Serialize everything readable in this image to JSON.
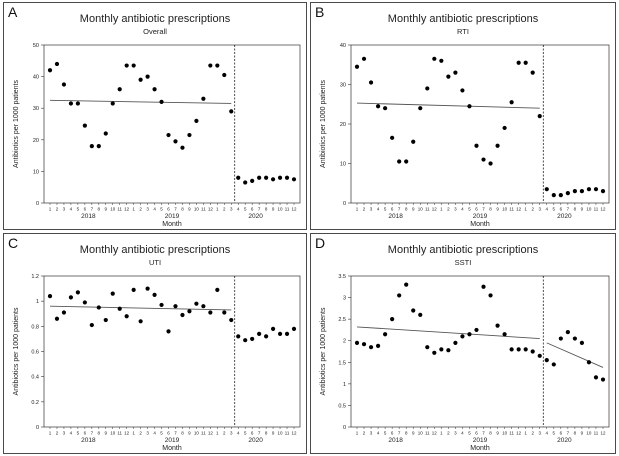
{
  "figure": {
    "colors": {
      "background": "#ffffff",
      "marker": "#000000",
      "trend_line": "#555555",
      "frame": "#333333",
      "text": "#222222"
    },
    "panels": [
      {
        "letter": "A",
        "title": "Monthly antibiotic prescriptions",
        "subtitle": "Overall"
      },
      {
        "letter": "B",
        "title": "Monthly antibiotic prescriptions",
        "subtitle": "RTI"
      },
      {
        "letter": "C",
        "title": "Monthly antibiotic prescriptions",
        "subtitle": "UTI"
      },
      {
        "letter": "D",
        "title": "Monthly antibiotic prescriptions",
        "subtitle": "SSTI"
      }
    ]
  },
  "chart_data": [
    {
      "type": "scatter",
      "title": "Monthly antibiotic prescriptions",
      "subtitle": "Overall",
      "xlabel": "Month",
      "ylabel": "Antibiotics per 1000 patients",
      "x_tick_labels": [
        "1",
        "2",
        "3",
        "4",
        "5",
        "6",
        "7",
        "8",
        "9",
        "10",
        "11",
        "12",
        "1",
        "2",
        "3",
        "4",
        "5",
        "6",
        "7",
        "8",
        "9",
        "10",
        "11",
        "12",
        "1",
        "2",
        "3",
        "4",
        "5",
        "6",
        "7",
        "8",
        "9",
        "10",
        "11",
        "12"
      ],
      "year_labels": [
        "2018",
        "2019",
        "2020"
      ],
      "ylim": [
        0,
        50
      ],
      "yticks": [
        0,
        10,
        20,
        30,
        40,
        50
      ],
      "grid": false,
      "interruption_after_month": 27,
      "values": [
        42,
        44,
        37.5,
        31.5,
        31.5,
        24.5,
        18,
        18,
        22,
        31.5,
        36,
        43.5,
        43.5,
        39,
        40,
        36,
        32,
        21.5,
        19.5,
        17.5,
        21.5,
        26,
        33,
        43.5,
        43.5,
        40.5,
        29,
        8,
        6.5,
        7,
        8,
        8,
        7.5,
        8,
        8,
        7.5
      ],
      "trend_segments": [
        {
          "from_month": 1,
          "to_month": 27,
          "start": 32.5,
          "end": 31.5
        }
      ]
    },
    {
      "type": "scatter",
      "title": "Monthly antibiotic prescriptions",
      "subtitle": "RTI",
      "xlabel": "Month",
      "ylabel": "Antibiotics per 1000 patients",
      "x_tick_labels": [
        "1",
        "2",
        "3",
        "4",
        "5",
        "6",
        "7",
        "8",
        "9",
        "10",
        "11",
        "12",
        "1",
        "2",
        "3",
        "4",
        "5",
        "6",
        "7",
        "8",
        "9",
        "10",
        "11",
        "12",
        "1",
        "2",
        "3",
        "4",
        "5",
        "6",
        "7",
        "8",
        "9",
        "10",
        "11",
        "12"
      ],
      "year_labels": [
        "2018",
        "2019",
        "2020"
      ],
      "ylim": [
        0,
        40
      ],
      "yticks": [
        0,
        10,
        20,
        30,
        40
      ],
      "grid": false,
      "interruption_after_month": 27,
      "values": [
        34.5,
        36.5,
        30.5,
        24.5,
        24,
        16.5,
        10.5,
        10.5,
        15.5,
        24,
        29,
        36.5,
        36,
        32,
        33,
        28.5,
        24.5,
        14.5,
        11,
        10,
        14.5,
        19,
        25.5,
        35.5,
        35.5,
        33,
        22,
        3.5,
        2,
        2,
        2.5,
        3,
        3,
        3.5,
        3.5,
        3
      ],
      "trend_segments": [
        {
          "from_month": 1,
          "to_month": 27,
          "start": 25.3,
          "end": 24
        }
      ]
    },
    {
      "type": "scatter",
      "title": "Monthly antibiotic prescriptions",
      "subtitle": "UTI",
      "xlabel": "Month",
      "ylabel": "Antibiotics per 1000 patients",
      "x_tick_labels": [
        "1",
        "2",
        "3",
        "4",
        "5",
        "6",
        "7",
        "8",
        "9",
        "10",
        "11",
        "12",
        "1",
        "2",
        "3",
        "4",
        "5",
        "6",
        "7",
        "8",
        "9",
        "10",
        "11",
        "12",
        "1",
        "2",
        "3",
        "4",
        "5",
        "6",
        "7",
        "8",
        "9",
        "10",
        "11",
        "12"
      ],
      "year_labels": [
        "2018",
        "2019",
        "2020"
      ],
      "ylim": [
        0,
        1.2
      ],
      "yticks": [
        0,
        0.2,
        0.4,
        0.6,
        0.8,
        1,
        1.2
      ],
      "grid": false,
      "interruption_after_month": 27,
      "values": [
        1.04,
        0.86,
        0.91,
        1.03,
        1.07,
        0.99,
        0.81,
        0.95,
        0.85,
        1.06,
        0.94,
        0.88,
        1.09,
        0.84,
        1.1,
        1.05,
        0.97,
        0.76,
        0.96,
        0.89,
        0.92,
        0.98,
        0.96,
        0.91,
        1.09,
        0.91,
        0.85,
        0.72,
        0.69,
        0.7,
        0.74,
        0.72,
        0.78,
        0.74,
        0.74,
        0.78
      ],
      "trend_segments": [
        {
          "from_month": 1,
          "to_month": 27,
          "start": 0.96,
          "end": 0.93
        }
      ]
    },
    {
      "type": "scatter",
      "title": "Monthly antibiotic prescriptions",
      "subtitle": "SSTI",
      "xlabel": "Month",
      "ylabel": "Antibiotics per 1000 patients",
      "x_tick_labels": [
        "1",
        "2",
        "3",
        "4",
        "5",
        "6",
        "7",
        "8",
        "9",
        "10",
        "11",
        "12",
        "1",
        "2",
        "3",
        "4",
        "5",
        "6",
        "7",
        "8",
        "9",
        "10",
        "11",
        "12",
        "1",
        "2",
        "3",
        "4",
        "5",
        "6",
        "7",
        "8",
        "9",
        "10",
        "11",
        "12"
      ],
      "year_labels": [
        "2018",
        "2019",
        "2020"
      ],
      "ylim": [
        0,
        3.5
      ],
      "yticks": [
        0,
        0.5,
        1,
        1.5,
        2,
        2.5,
        3,
        3.5
      ],
      "grid": false,
      "interruption_after_month": 27,
      "values": [
        1.95,
        1.92,
        1.85,
        1.88,
        2.15,
        2.5,
        3.05,
        3.3,
        2.7,
        2.6,
        1.85,
        1.72,
        1.8,
        1.78,
        1.95,
        2.1,
        2.15,
        2.25,
        3.25,
        3.05,
        2.35,
        2.15,
        1.8,
        1.8,
        1.8,
        1.75,
        1.65,
        1.55,
        1.45,
        2.05,
        2.2,
        2.05,
        1.95,
        1.5,
        1.15,
        1.1
      ],
      "trend_segments": [
        {
          "from_month": 1,
          "to_month": 27,
          "start": 2.32,
          "end": 2.05
        },
        {
          "from_month": 28,
          "to_month": 36,
          "start": 1.95,
          "end": 1.38
        }
      ]
    }
  ]
}
